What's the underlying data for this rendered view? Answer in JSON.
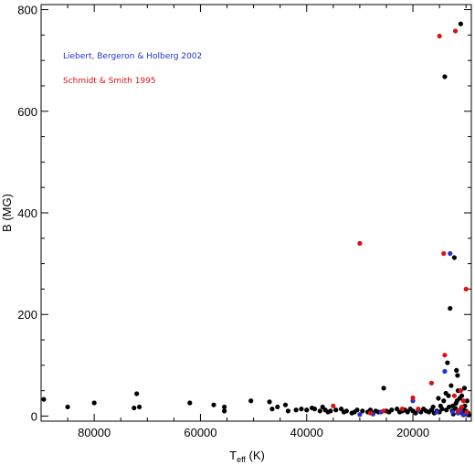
{
  "chart_data": {
    "type": "scatter",
    "x_axis": {
      "label": "T",
      "label_subscript": "eff",
      "label_units": "(K)",
      "range": [
        90000,
        9000
      ],
      "ticks": [
        80000,
        60000,
        40000,
        20000
      ],
      "tick_labels": [
        "80000",
        "60000",
        "40000",
        "20000"
      ]
    },
    "y_axis": {
      "label": "B (MG)",
      "range": [
        -10,
        810
      ],
      "ticks": [
        0,
        200,
        400,
        600,
        800
      ],
      "tick_labels": [
        "0",
        "200",
        "400",
        "600",
        "800"
      ]
    },
    "grid": false,
    "legend_position": "top-left",
    "series": [
      {
        "name": "",
        "color": "#000000",
        "points": [
          [
            89500,
            33
          ],
          [
            85000,
            18
          ],
          [
            80000,
            26
          ],
          [
            72000,
            44
          ],
          [
            72500,
            16
          ],
          [
            71500,
            18
          ],
          [
            62000,
            26
          ],
          [
            57500,
            22
          ],
          [
            55500,
            18
          ],
          [
            55500,
            10
          ],
          [
            50500,
            30
          ],
          [
            47000,
            28
          ],
          [
            46500,
            14
          ],
          [
            45500,
            18
          ],
          [
            44000,
            22
          ],
          [
            43500,
            10
          ],
          [
            42000,
            12
          ],
          [
            41000,
            14
          ],
          [
            40000,
            12
          ],
          [
            39000,
            16
          ],
          [
            38500,
            14
          ],
          [
            37500,
            10
          ],
          [
            37000,
            18
          ],
          [
            36500,
            12
          ],
          [
            36000,
            8
          ],
          [
            35500,
            10
          ],
          [
            34500,
            12
          ],
          [
            33500,
            14
          ],
          [
            33000,
            8
          ],
          [
            32500,
            10
          ],
          [
            31500,
            6
          ],
          [
            31000,
            8
          ],
          [
            30500,
            12
          ],
          [
            29500,
            10
          ],
          [
            28500,
            8
          ],
          [
            28000,
            12
          ],
          [
            27500,
            6
          ],
          [
            27000,
            10
          ],
          [
            26500,
            8
          ],
          [
            25500,
            55
          ],
          [
            25000,
            10
          ],
          [
            24500,
            8
          ],
          [
            24000,
            12
          ],
          [
            23000,
            14
          ],
          [
            22500,
            8
          ],
          [
            22000,
            10
          ],
          [
            21500,
            12
          ],
          [
            21000,
            8
          ],
          [
            20500,
            14
          ],
          [
            20000,
            10
          ],
          [
            19500,
            6
          ],
          [
            19000,
            12
          ],
          [
            18500,
            8
          ],
          [
            18000,
            14
          ],
          [
            17500,
            10
          ],
          [
            17000,
            8
          ],
          [
            16500,
            12
          ],
          [
            16000,
            6
          ],
          [
            15500,
            10
          ],
          [
            15000,
            8
          ],
          [
            14500,
            14
          ],
          [
            14000,
            668
          ],
          [
            14200,
            30
          ],
          [
            13800,
            45
          ],
          [
            13500,
            105
          ],
          [
            13300,
            40
          ],
          [
            13000,
            212
          ],
          [
            12800,
            60
          ],
          [
            12500,
            20
          ],
          [
            12200,
            312
          ],
          [
            12000,
            15
          ],
          [
            11800,
            90
          ],
          [
            11600,
            80
          ],
          [
            11500,
            50
          ],
          [
            11300,
            8
          ],
          [
            11200,
            35
          ],
          [
            11000,
            772
          ],
          [
            10800,
            40
          ],
          [
            10600,
            4
          ],
          [
            10500,
            12
          ],
          [
            10300,
            55
          ],
          [
            10200,
            20
          ],
          [
            10000,
            10
          ],
          [
            9800,
            30
          ],
          [
            9600,
            6
          ],
          [
            9500,
            2
          ],
          [
            13200,
            18
          ],
          [
            12600,
            10
          ],
          [
            11900,
            25
          ],
          [
            11700,
            30
          ],
          [
            14800,
            20
          ],
          [
            15200,
            35
          ],
          [
            16200,
            18
          ],
          [
            13700,
            12
          ],
          [
            12400,
            4
          ],
          [
            10900,
            16
          ]
        ]
      },
      {
        "name": "Liebert, Bergeron & Holberg 2002",
        "color": "#2233cc",
        "points": [
          [
            30000,
            3
          ],
          [
            27500,
            4
          ],
          [
            26000,
            8
          ],
          [
            20000,
            30
          ],
          [
            19000,
            12
          ],
          [
            15500,
            8
          ],
          [
            14000,
            88
          ],
          [
            13000,
            320
          ],
          [
            12500,
            8
          ],
          [
            11500,
            6
          ],
          [
            11000,
            10
          ],
          [
            10500,
            2
          ],
          [
            10000,
            4
          ]
        ]
      },
      {
        "name": "Schmidt & Smith 1995",
        "color": "#dd1111",
        "points": [
          [
            35000,
            20
          ],
          [
            30000,
            340
          ],
          [
            28000,
            6
          ],
          [
            25500,
            10
          ],
          [
            22000,
            14
          ],
          [
            20000,
            36
          ],
          [
            19000,
            14
          ],
          [
            16500,
            65
          ],
          [
            15000,
            748
          ],
          [
            14200,
            320
          ],
          [
            14000,
            120
          ],
          [
            12000,
            758
          ],
          [
            11500,
            10
          ],
          [
            11000,
            50
          ],
          [
            10800,
            18
          ],
          [
            10500,
            30
          ],
          [
            10000,
            250
          ],
          [
            9800,
            8
          ],
          [
            12200,
            40
          ]
        ]
      }
    ]
  }
}
